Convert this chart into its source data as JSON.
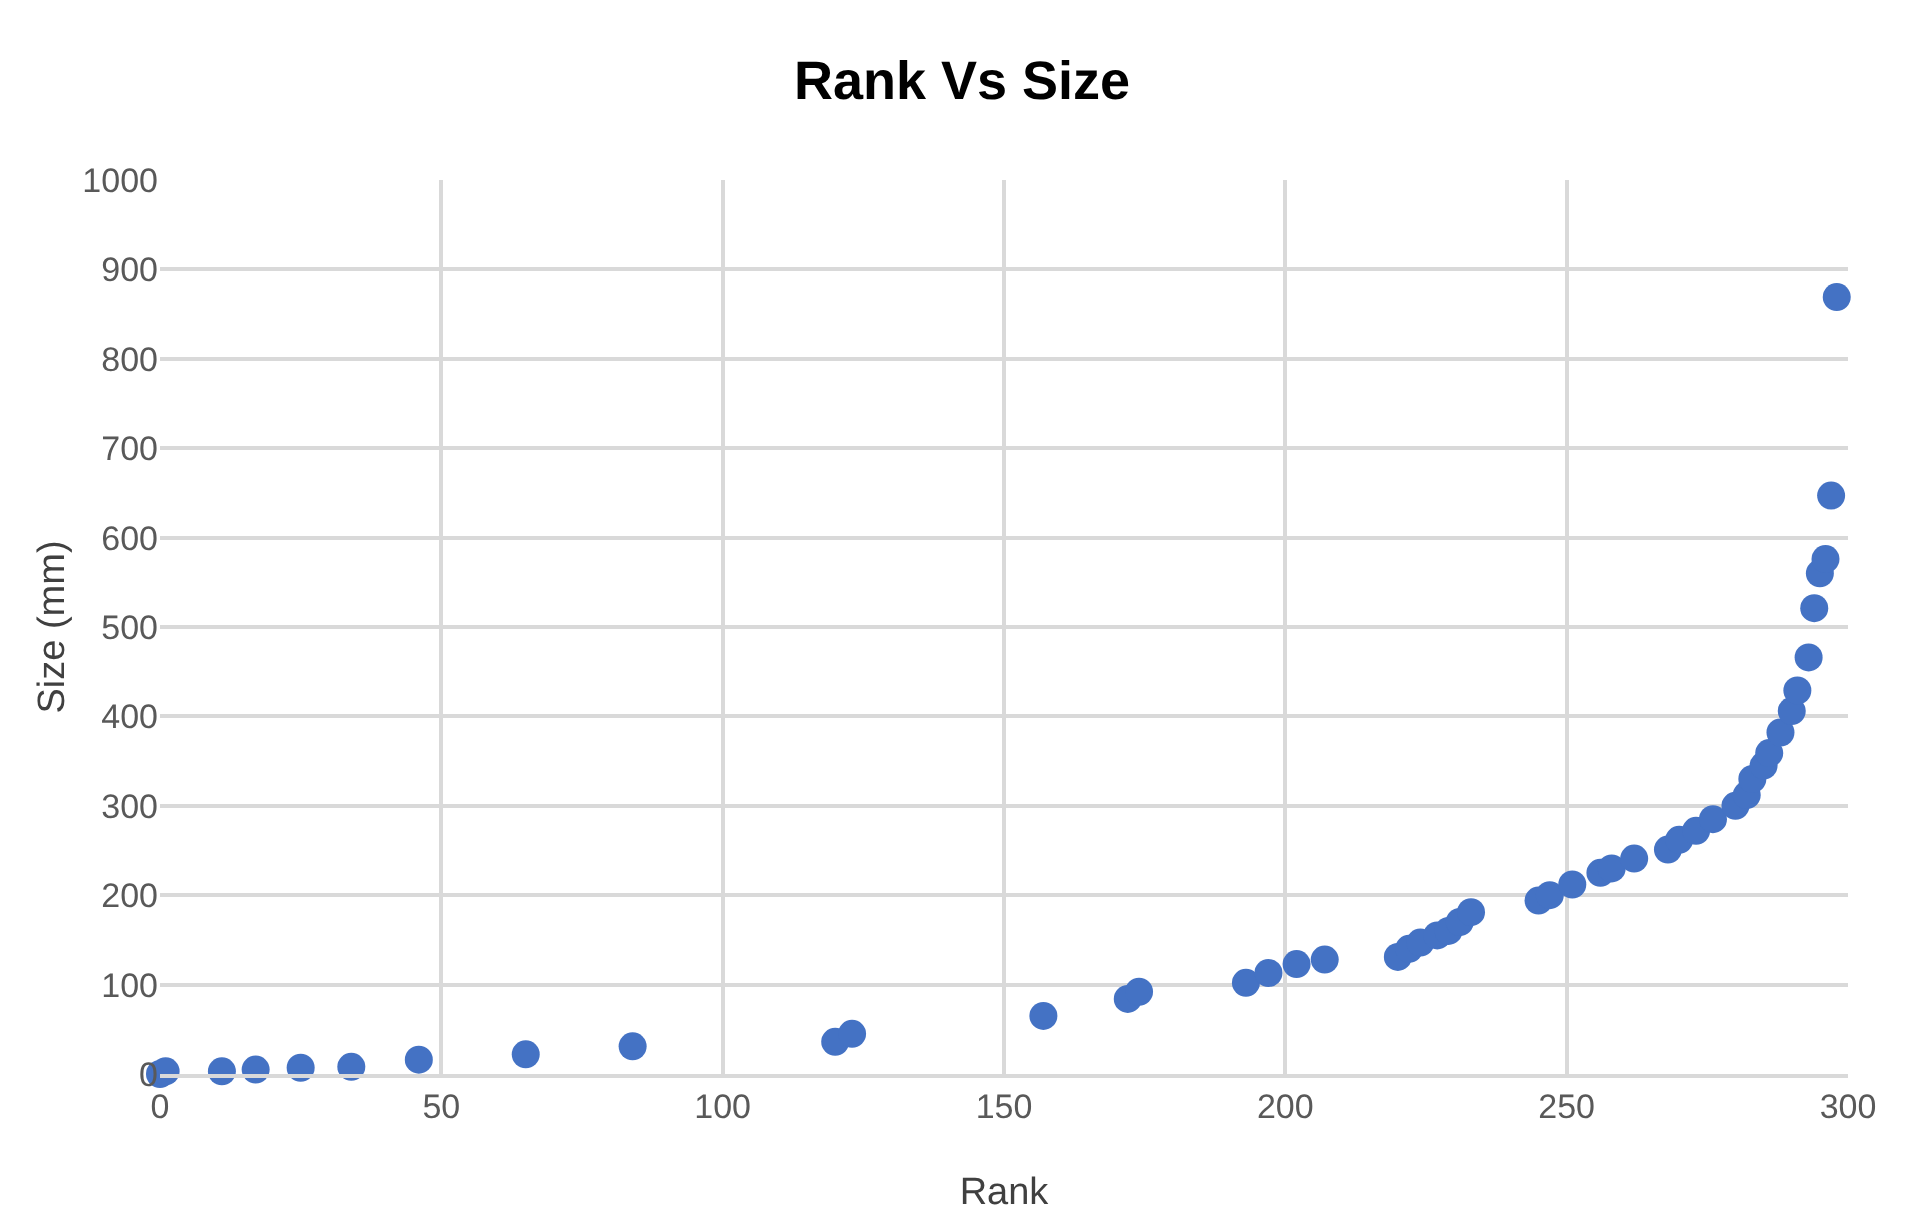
{
  "chart_data": {
    "type": "scatter",
    "title": "Rank Vs Size",
    "xlabel": "Rank",
    "ylabel": "Size (mm)",
    "x": [
      0,
      1,
      11,
      17,
      25,
      34,
      46,
      65,
      84,
      120,
      123,
      157,
      172,
      174,
      193,
      197,
      202,
      207,
      220,
      222,
      224,
      227,
      229,
      231,
      233,
      245,
      247,
      251,
      256,
      258,
      262,
      268,
      270,
      273,
      276,
      280,
      282,
      283,
      285,
      286,
      288,
      290,
      291,
      293,
      294,
      295,
      296,
      297,
      298
    ],
    "values": [
      0,
      3,
      3,
      5,
      7,
      8,
      16,
      22,
      31,
      36,
      45,
      65,
      84,
      92,
      102,
      113,
      123,
      128,
      131,
      140,
      147,
      155,
      160,
      170,
      181,
      194,
      200,
      212,
      225,
      230,
      241,
      251,
      262,
      272,
      285,
      300,
      312,
      330,
      345,
      359,
      382,
      406,
      429,
      466,
      521,
      560,
      576,
      647,
      869
    ],
    "color": "#4472c4",
    "marker": "circle",
    "xlim": [
      0,
      300
    ],
    "xticks": [
      0,
      50,
      100,
      150,
      200,
      250,
      300
    ],
    "ylim": [
      0,
      1000
    ],
    "yticks": [
      0,
      100,
      200,
      300,
      400,
      500,
      600,
      700,
      800,
      900,
      1000
    ],
    "grid": true,
    "legend": false
  }
}
